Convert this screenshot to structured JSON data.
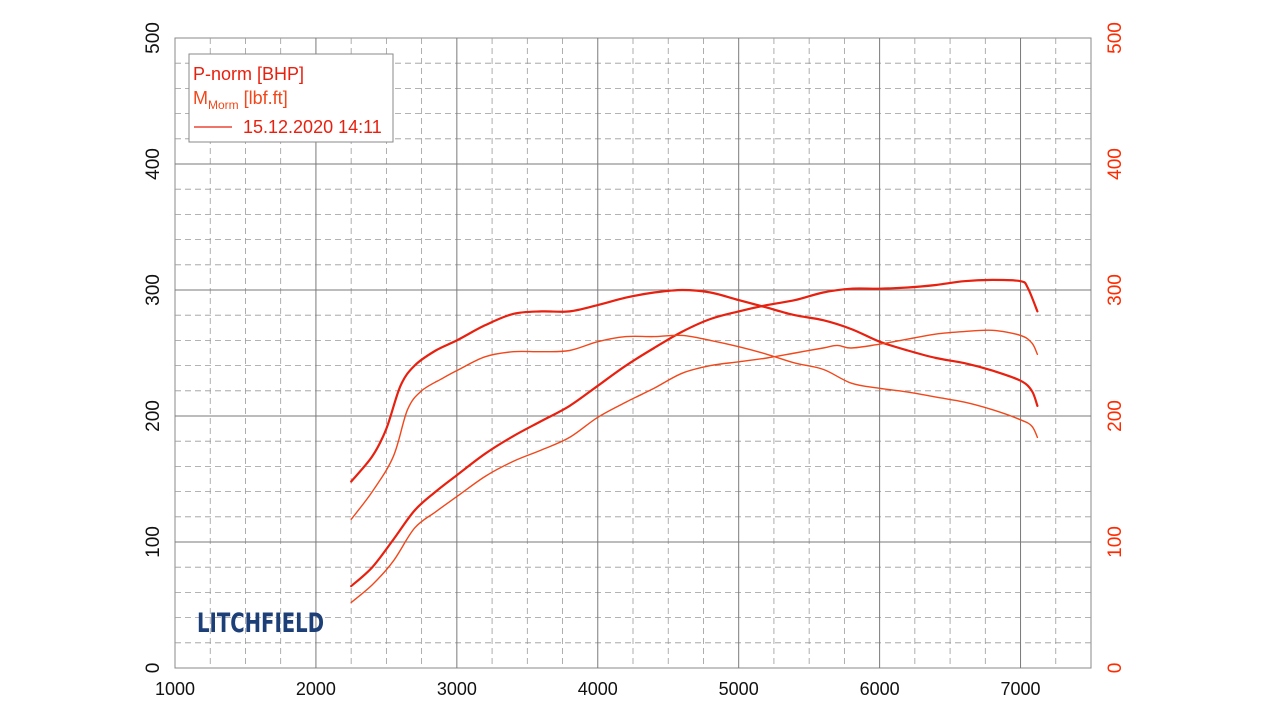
{
  "chart_data": {
    "type": "line",
    "title": "",
    "xlabel": "",
    "ylabel": "",
    "xlim": [
      1000,
      7500
    ],
    "ylim": [
      0,
      500
    ],
    "ylim_right": [
      0,
      500
    ],
    "x_ticks": [
      "1000",
      "2000",
      "3000",
      "4000",
      "5000",
      "6000",
      "7000"
    ],
    "x_tick_values": [
      1000,
      2000,
      3000,
      4000,
      5000,
      6000,
      7000
    ],
    "y_ticks_left": [
      "0",
      "100",
      "200",
      "300",
      "400",
      "500"
    ],
    "y_ticks_right": [
      "0",
      "100",
      "200",
      "300",
      "400",
      "500"
    ],
    "y_tick_values": [
      0,
      100,
      200,
      300,
      400,
      500
    ],
    "grid": true,
    "legend_position": "top-left",
    "legend": {
      "line1": "P-norm [BHP]",
      "line2_main": "M",
      "line2_sub": "Morm",
      "line2_unit": " [lbf.ft]",
      "line3": "15.12.2020 14:11"
    },
    "colors": {
      "primary": "#e8200f",
      "secondary": "#f2471a",
      "right_axis": "#ff2a00",
      "logo": "#1c3f78"
    },
    "logo_text": "LITCHFIELD",
    "series": [
      {
        "values": [
          [
            2250,
            65
          ],
          [
            2400,
            80
          ],
          [
            2550,
            102
          ],
          [
            2700,
            125
          ],
          [
            2850,
            140
          ],
          [
            3000,
            153
          ],
          [
            3200,
            170
          ],
          [
            3400,
            184
          ],
          [
            3600,
            196
          ],
          [
            3800,
            208
          ],
          [
            4000,
            224
          ],
          [
            4200,
            240
          ],
          [
            4400,
            254
          ],
          [
            4600,
            267
          ],
          [
            4800,
            277
          ],
          [
            5000,
            283
          ],
          [
            5200,
            288
          ],
          [
            5400,
            292
          ],
          [
            5600,
            298
          ],
          [
            5800,
            301
          ],
          [
            6000,
            301
          ],
          [
            6200,
            302
          ],
          [
            6400,
            304
          ],
          [
            6600,
            307
          ],
          [
            6800,
            308
          ],
          [
            7000,
            307
          ],
          [
            7050,
            302
          ],
          [
            7120,
            283
          ]
        ]
      },
      {
        "values": [
          [
            2250,
            148
          ],
          [
            2400,
            168
          ],
          [
            2500,
            190
          ],
          [
            2600,
            224
          ],
          [
            2700,
            240
          ],
          [
            2850,
            252
          ],
          [
            3000,
            260
          ],
          [
            3200,
            272
          ],
          [
            3400,
            281
          ],
          [
            3600,
            283
          ],
          [
            3800,
            283
          ],
          [
            4000,
            288
          ],
          [
            4200,
            294
          ],
          [
            4400,
            298
          ],
          [
            4600,
            300
          ],
          [
            4800,
            298
          ],
          [
            5000,
            292
          ],
          [
            5200,
            286
          ],
          [
            5400,
            280
          ],
          [
            5600,
            276
          ],
          [
            5800,
            269
          ],
          [
            6000,
            259
          ],
          [
            6200,
            252
          ],
          [
            6400,
            246
          ],
          [
            6600,
            242
          ],
          [
            6800,
            236
          ],
          [
            7000,
            228
          ],
          [
            7080,
            220
          ],
          [
            7120,
            208
          ]
        ]
      },
      {
        "values": [
          [
            2250,
            52
          ],
          [
            2400,
            66
          ],
          [
            2550,
            85
          ],
          [
            2700,
            111
          ],
          [
            2850,
            124
          ],
          [
            3000,
            136
          ],
          [
            3200,
            152
          ],
          [
            3400,
            164
          ],
          [
            3600,
            173
          ],
          [
            3800,
            183
          ],
          [
            4000,
            199
          ],
          [
            4200,
            211
          ],
          [
            4400,
            222
          ],
          [
            4600,
            234
          ],
          [
            4800,
            240
          ],
          [
            5000,
            243
          ],
          [
            5200,
            246
          ],
          [
            5400,
            250
          ],
          [
            5600,
            254
          ],
          [
            5700,
            256
          ],
          [
            5800,
            254
          ],
          [
            6000,
            257
          ],
          [
            6200,
            261
          ],
          [
            6400,
            265
          ],
          [
            6600,
            267
          ],
          [
            6800,
            268
          ],
          [
            7000,
            264
          ],
          [
            7080,
            258
          ],
          [
            7120,
            249
          ]
        ]
      },
      {
        "values": [
          [
            2250,
            118
          ],
          [
            2400,
            140
          ],
          [
            2550,
            168
          ],
          [
            2650,
            205
          ],
          [
            2750,
            220
          ],
          [
            2900,
            230
          ],
          [
            3000,
            236
          ],
          [
            3200,
            247
          ],
          [
            3400,
            251
          ],
          [
            3600,
            251
          ],
          [
            3800,
            252
          ],
          [
            4000,
            259
          ],
          [
            4200,
            263
          ],
          [
            4400,
            263
          ],
          [
            4600,
            264
          ],
          [
            4800,
            260
          ],
          [
            5000,
            255
          ],
          [
            5200,
            249
          ],
          [
            5400,
            242
          ],
          [
            5600,
            237
          ],
          [
            5800,
            226
          ],
          [
            6000,
            222
          ],
          [
            6200,
            219
          ],
          [
            6400,
            215
          ],
          [
            6600,
            211
          ],
          [
            6800,
            205
          ],
          [
            7000,
            197
          ],
          [
            7080,
            192
          ],
          [
            7120,
            183
          ]
        ]
      }
    ]
  }
}
